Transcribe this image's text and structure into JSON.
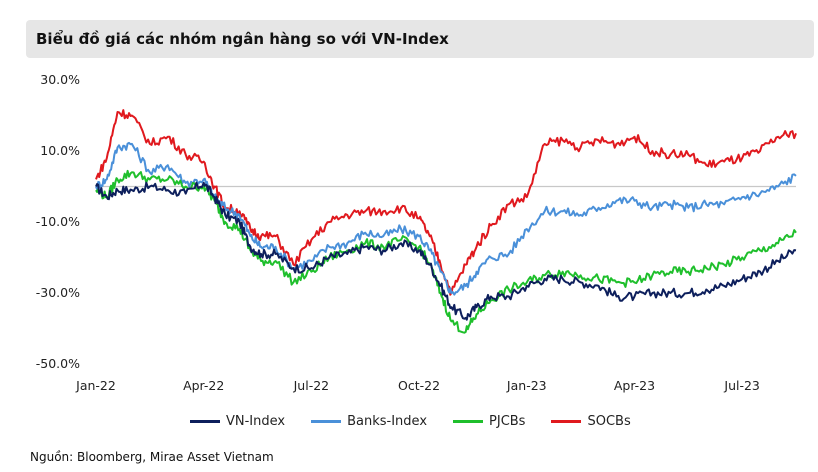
{
  "title": "Biểu đồ giá các nhóm ngân hàng so với VN-Index",
  "source": "Nguồn: Bloomberg, Mirae Asset Vietnam",
  "chart_data": {
    "type": "line",
    "title": "Biểu đồ giá các nhóm ngân hàng so với VN-Index",
    "xlabel": "",
    "ylabel": "",
    "ylim": [
      -50,
      30
    ],
    "y_ticks": [
      30,
      10,
      -10,
      -30,
      -50
    ],
    "y_tick_labels": [
      "30.0%",
      "10.0%",
      "-10.0%",
      "-30.0%",
      "-50.0%"
    ],
    "x_range": [
      0,
      19.5
    ],
    "x_ticks": [
      0,
      3,
      6,
      9,
      12,
      15,
      18
    ],
    "x_tick_labels": [
      "Jan-22",
      "Apr-22",
      "Jul-22",
      "Oct-22",
      "Jan-23",
      "Apr-23",
      "Jul-23"
    ],
    "zero_line": true,
    "series": [
      {
        "name": "VN-Index",
        "color": "#0d1f5c",
        "x": [
          0,
          0.3,
          0.6,
          1,
          1.5,
          2,
          2.5,
          3,
          3.3,
          3.6,
          4,
          4.3,
          4.6,
          5,
          5.5,
          6,
          6.5,
          7,
          7.5,
          8,
          8.5,
          9,
          9.3,
          9.6,
          9.9,
          10.3,
          10.6,
          11,
          11.5,
          12,
          12.5,
          13,
          13.5,
          14,
          14.5,
          15,
          15.5,
          16,
          16.5,
          17,
          17.5,
          18,
          18.5,
          19,
          19.5
        ],
        "y": [
          0,
          -3,
          -1,
          -1,
          0,
          -1,
          -2,
          1,
          -3,
          -8,
          -10,
          -17,
          -19,
          -19,
          -23,
          -23,
          -20,
          -19,
          -17,
          -18,
          -16,
          -18,
          -22,
          -28,
          -34,
          -37,
          -34,
          -31,
          -31,
          -28,
          -26,
          -26,
          -27,
          -28,
          -31,
          -31,
          -30,
          -30,
          -30,
          -29,
          -28,
          -26,
          -24,
          -21,
          -18
        ]
      },
      {
        "name": "Banks-Index",
        "color": "#4a90d9",
        "x": [
          0,
          0.3,
          0.6,
          1,
          1.5,
          2,
          2.5,
          3,
          3.3,
          3.6,
          4,
          4.3,
          4.6,
          5,
          5.5,
          6,
          6.5,
          7,
          7.5,
          8,
          8.5,
          9,
          9.3,
          9.6,
          9.9,
          10.3,
          10.6,
          11,
          11.5,
          12,
          12.5,
          13,
          13.5,
          14,
          14.5,
          15,
          15.5,
          16,
          16.5,
          17,
          17.5,
          18,
          18.5,
          19,
          19.5
        ],
        "y": [
          0,
          2,
          11,
          12,
          4,
          6,
          1,
          2,
          -3,
          -6,
          -8,
          -14,
          -17,
          -17,
          -23,
          -21,
          -17,
          -16,
          -13,
          -14,
          -12,
          -14,
          -18,
          -24,
          -30,
          -28,
          -24,
          -20,
          -19,
          -12,
          -7,
          -7,
          -8,
          -6,
          -4,
          -4,
          -6,
          -5,
          -6,
          -5,
          -5,
          -3,
          -2,
          0,
          3
        ]
      },
      {
        "name": "PJCBs",
        "color": "#1fbf2c",
        "x": [
          0,
          0.3,
          0.6,
          1,
          1.5,
          2,
          2.5,
          3,
          3.3,
          3.6,
          4,
          4.3,
          4.6,
          5,
          5.5,
          6,
          6.5,
          7,
          7.5,
          8,
          8.5,
          9,
          9.3,
          9.6,
          9.9,
          10.3,
          10.6,
          11,
          11.5,
          12,
          12.5,
          13,
          13.5,
          14,
          14.5,
          15,
          15.5,
          16,
          16.5,
          17,
          17.5,
          18,
          18.5,
          19,
          19.5
        ],
        "y": [
          -1,
          -3,
          2,
          4,
          2,
          2,
          0,
          0,
          -4,
          -10,
          -12,
          -18,
          -21,
          -21,
          -27,
          -24,
          -20,
          -18,
          -16,
          -17,
          -15,
          -17,
          -22,
          -30,
          -38,
          -41,
          -36,
          -32,
          -29,
          -27,
          -25,
          -24,
          -25,
          -26,
          -27,
          -27,
          -25,
          -24,
          -24,
          -23,
          -22,
          -20,
          -18,
          -16,
          -13
        ]
      },
      {
        "name": "SOCBs",
        "color": "#e0191e",
        "x": [
          0,
          0.3,
          0.6,
          1,
          1.5,
          2,
          2.5,
          3,
          3.3,
          3.6,
          4,
          4.3,
          4.6,
          5,
          5.5,
          6,
          6.5,
          7,
          7.5,
          8,
          8.5,
          9,
          9.3,
          9.6,
          9.9,
          10.3,
          10.6,
          11,
          11.5,
          12,
          12.5,
          13,
          13.5,
          14,
          14.5,
          15,
          15.5,
          16,
          16.5,
          17,
          17.5,
          18,
          18.5,
          19,
          19.5
        ],
        "y": [
          2,
          8,
          21,
          20,
          12,
          14,
          9,
          7,
          0,
          -6,
          -7,
          -12,
          -14,
          -14,
          -22,
          -15,
          -10,
          -8,
          -7,
          -7,
          -6,
          -9,
          -14,
          -22,
          -30,
          -22,
          -17,
          -11,
          -5,
          -3,
          12,
          13,
          11,
          13,
          12,
          14,
          10,
          9,
          9,
          6,
          7,
          8,
          10,
          14,
          15
        ]
      }
    ]
  }
}
